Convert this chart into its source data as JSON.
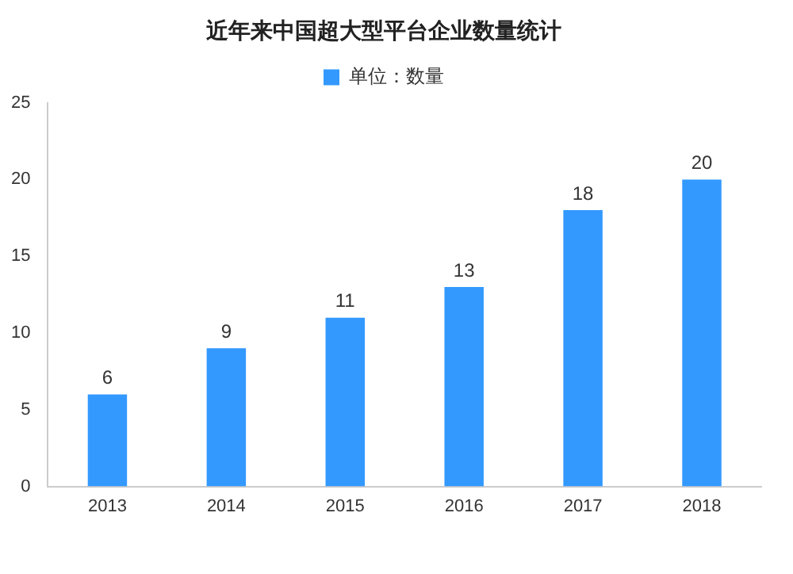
{
  "chart_data": {
    "type": "bar",
    "title": "近年来中国超大型平台企业数量统计",
    "categories": [
      "2013",
      "2014",
      "2015",
      "2016",
      "2017",
      "2018"
    ],
    "series": [
      {
        "name": "单位：数量",
        "color": "#3399ff",
        "values": [
          6,
          9,
          11,
          13,
          18,
          20
        ]
      }
    ],
    "ylim": [
      0,
      25
    ],
    "yticks": [
      0,
      5,
      10,
      15,
      20,
      25
    ],
    "grid": false,
    "legend": "top",
    "data_labels": true
  }
}
